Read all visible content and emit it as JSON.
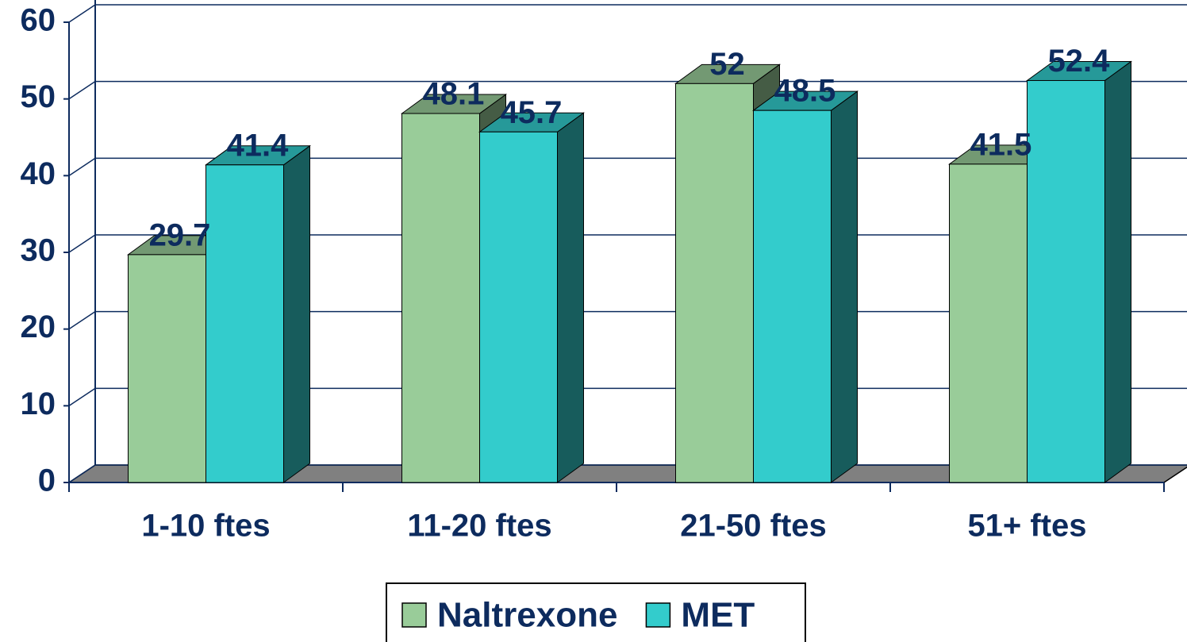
{
  "chart_data": {
    "type": "bar3d",
    "categories": [
      "1-10 ftes",
      "11-20 ftes",
      "21-50 ftes",
      "51+ ftes"
    ],
    "series": [
      {
        "name": "Naltrexone",
        "color": "#99cc99",
        "values": [
          29.7,
          48.1,
          52,
          41.5
        ]
      },
      {
        "name": "MET",
        "color": "#33cccc",
        "values": [
          41.4,
          45.7,
          48.5,
          52.4
        ]
      }
    ],
    "ylim": [
      0,
      60
    ],
    "yticks": [
      0,
      10,
      20,
      30,
      40,
      50,
      60
    ],
    "grid": true,
    "legend": "bottom"
  }
}
